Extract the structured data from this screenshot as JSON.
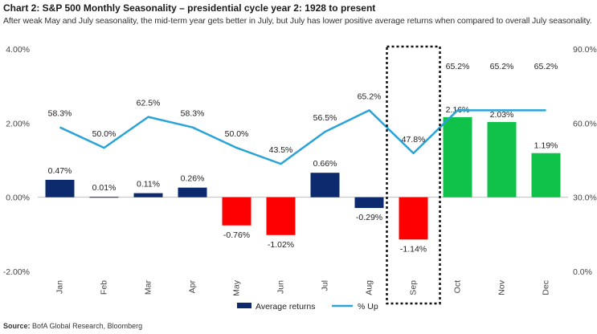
{
  "title": "Chart 2: S&P 500 Monthly Seasonality – presidential cycle year 2: 1928  to present",
  "subtitle": "After weak May and July seasonality, the mid-term year gets better in July, but July has lower positive average returns when compared to overall July seasonality.",
  "source_label": "Source:",
  "source_text": "BofA Global Research, Bloomberg",
  "colors": {
    "positive": "#0d2a6e",
    "negative": "#ff0000",
    "green": "#11c24a",
    "line": "#2aa3d8",
    "highlight_box": "#111111"
  },
  "chart_data": {
    "type": "bar",
    "categories": [
      "Jan",
      "Feb",
      "Mar",
      "Apr",
      "May",
      "Jun",
      "Jul",
      "Aug",
      "Sep",
      "Oct",
      "Nov",
      "Dec"
    ],
    "series": [
      {
        "name": "Average returns",
        "axis": "left",
        "values": [
          0.47,
          0.01,
          0.11,
          0.26,
          -0.76,
          -1.02,
          0.66,
          -0.29,
          -1.14,
          2.16,
          2.03,
          1.19
        ],
        "labels": [
          "0.47%",
          "0.01%",
          "0.11%",
          "0.26%",
          "-0.76%",
          "-1.02%",
          "0.66%",
          "-0.29%",
          "-1.14%",
          "2.16%",
          "2.03%",
          "1.19%"
        ]
      },
      {
        "name": "% Up",
        "axis": "right",
        "type": "line",
        "values": [
          58.3,
          50.0,
          62.5,
          58.3,
          50.0,
          43.5,
          56.5,
          65.2,
          47.8,
          65.2,
          65.2,
          65.2
        ],
        "labels": [
          "58.3%",
          "50.0%",
          "62.5%",
          "58.3%",
          "50.0%",
          "43.5%",
          "56.5%",
          "65.2%",
          "47.8%",
          "65.2%",
          "65.2%",
          "65.2%"
        ]
      }
    ],
    "bar_colors": [
      "positive",
      "positive",
      "positive",
      "positive",
      "negative",
      "negative",
      "positive",
      "positive",
      "negative",
      "green",
      "green",
      "green"
    ],
    "y_left": {
      "range": [
        -2.0,
        4.0
      ],
      "ticks": [
        4.0,
        2.0,
        0.0,
        -2.0
      ],
      "tick_labels": [
        "4.00%",
        "2.00%",
        "0.00%",
        "-2.00%"
      ]
    },
    "y_right": {
      "range": [
        0,
        90
      ],
      "ticks": [
        90,
        60,
        30,
        0
      ],
      "tick_labels": [
        "90.0%",
        "60.0%",
        "30.0%",
        "0.0%"
      ]
    },
    "highlight_category": "Sep",
    "grid": false,
    "legend_position": "bottom-center"
  }
}
